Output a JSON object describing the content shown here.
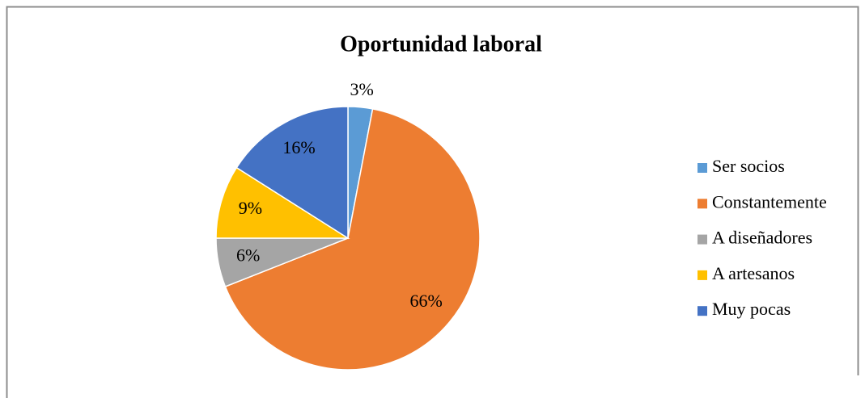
{
  "chart_data": {
    "type": "pie",
    "title": "Oportunidad laboral",
    "categories": [
      "Ser socios",
      "Constantemente",
      "A diseñadores",
      "A artesanos",
      "Muy pocas"
    ],
    "values": [
      3,
      66,
      6,
      9,
      16
    ],
    "value_labels": [
      "3%",
      "66%",
      "6%",
      "9%",
      "16%"
    ],
    "colors": [
      "#5b9bd5",
      "#ed7d31",
      "#a5a5a5",
      "#ffc000",
      "#4472c4"
    ],
    "legend": "right"
  }
}
